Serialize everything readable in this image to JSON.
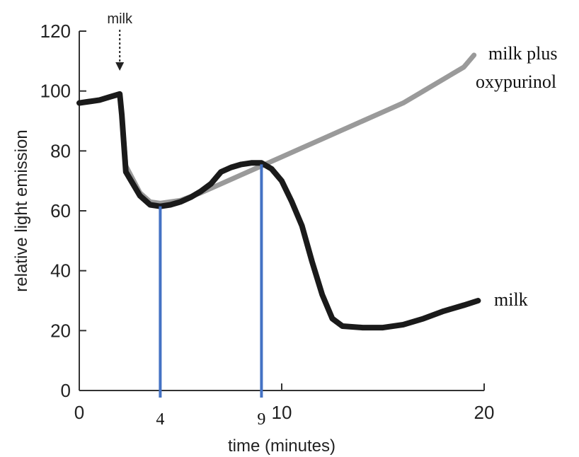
{
  "chart_data": {
    "type": "line",
    "xlabel": "time (minutes)",
    "ylabel": "relative light emission",
    "xlim": [
      0,
      20
    ],
    "ylim": [
      0,
      120
    ],
    "x_ticks": [
      0,
      10,
      20
    ],
    "y_ticks": [
      0,
      20,
      40,
      60,
      80,
      100,
      120
    ],
    "grid": false,
    "annotations": {
      "arrow_label": "milk",
      "arrow_x": 2,
      "marker_lines": [
        {
          "x": 4,
          "label": "4"
        },
        {
          "x": 9,
          "label": "9"
        }
      ]
    },
    "series": [
      {
        "name": "milk plus oxypurinol",
        "label_lines": [
          "milk  plus",
          "oxypurinol"
        ],
        "color": "#9a9a9a",
        "points": [
          [
            0,
            96
          ],
          [
            0.5,
            96.5
          ],
          [
            1,
            97
          ],
          [
            1.5,
            98
          ],
          [
            2,
            99
          ],
          [
            2.1,
            92
          ],
          [
            2.3,
            75
          ],
          [
            3,
            66
          ],
          [
            3.5,
            63
          ],
          [
            4,
            62.5
          ],
          [
            5,
            63.5
          ],
          [
            6,
            66
          ],
          [
            7,
            69
          ],
          [
            8,
            72
          ],
          [
            9,
            75
          ],
          [
            10,
            78
          ],
          [
            11,
            81
          ],
          [
            12,
            84
          ],
          [
            13,
            87
          ],
          [
            14,
            90
          ],
          [
            15,
            93
          ],
          [
            16,
            96
          ],
          [
            17,
            100
          ],
          [
            18,
            104
          ],
          [
            19,
            108
          ],
          [
            19.5,
            112
          ]
        ]
      },
      {
        "name": "milk",
        "label_lines": [
          "milk"
        ],
        "color": "#1a1a1a",
        "points": [
          [
            0,
            96
          ],
          [
            0.5,
            96.5
          ],
          [
            1,
            97
          ],
          [
            1.5,
            98
          ],
          [
            2,
            99
          ],
          [
            2.1,
            92
          ],
          [
            2.3,
            73
          ],
          [
            3,
            65
          ],
          [
            3.5,
            62
          ],
          [
            4,
            61.5
          ],
          [
            4.5,
            62
          ],
          [
            5,
            63
          ],
          [
            5.5,
            64.5
          ],
          [
            6,
            66.5
          ],
          [
            6.5,
            69
          ],
          [
            7,
            73
          ],
          [
            7.5,
            74.5
          ],
          [
            8,
            75.5
          ],
          [
            8.5,
            76
          ],
          [
            9,
            76
          ],
          [
            9.5,
            74
          ],
          [
            10,
            70
          ],
          [
            10.5,
            63
          ],
          [
            11,
            55
          ],
          [
            11.5,
            43
          ],
          [
            12,
            32
          ],
          [
            12.5,
            24
          ],
          [
            13,
            21.5
          ],
          [
            14,
            21
          ],
          [
            15,
            21
          ],
          [
            16,
            22
          ],
          [
            17,
            24
          ],
          [
            18,
            26.5
          ],
          [
            19,
            28.5
          ],
          [
            19.7,
            30
          ]
        ]
      }
    ]
  }
}
